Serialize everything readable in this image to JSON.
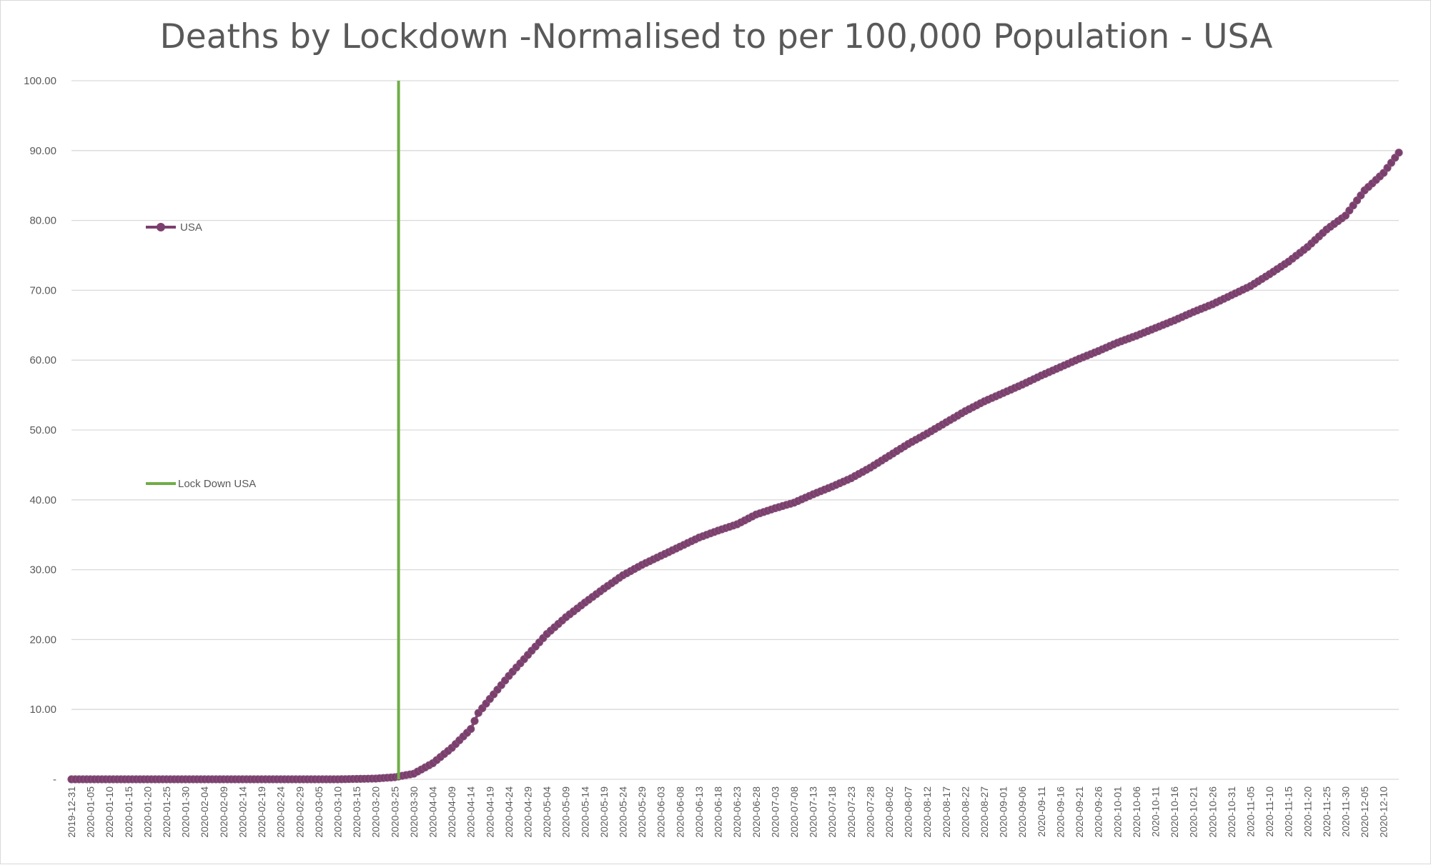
{
  "chart_data": {
    "type": "line",
    "title": "Deaths by Lockdown -Normalised to per 100,000 Population - USA",
    "xlabel": "",
    "ylabel": "",
    "ylim": [
      0,
      100
    ],
    "yticks": [
      "-",
      "10.00",
      "20.00",
      "30.00",
      "40.00",
      "50.00",
      "60.00",
      "70.00",
      "80.00",
      "90.00",
      "100.00"
    ],
    "grid": true,
    "x_start": "2019-12-31",
    "x_end": "2020-12-14",
    "x_tick_labels": [
      "2019-12-31",
      "2020-01-05",
      "2020-01-10",
      "2020-01-15",
      "2020-01-20",
      "2020-01-25",
      "2020-01-30",
      "2020-02-04",
      "2020-02-09",
      "2020-02-14",
      "2020-02-19",
      "2020-02-24",
      "2020-02-29",
      "2020-03-05",
      "2020-03-10",
      "2020-03-15",
      "2020-03-20",
      "2020-03-25",
      "2020-03-30",
      "2020-04-04",
      "2020-04-09",
      "2020-04-14",
      "2020-04-19",
      "2020-04-24",
      "2020-04-29",
      "2020-05-04",
      "2020-05-09",
      "2020-05-14",
      "2020-05-19",
      "2020-05-24",
      "2020-05-29",
      "2020-06-03",
      "2020-06-08",
      "2020-06-13",
      "2020-06-18",
      "2020-06-23",
      "2020-06-28",
      "2020-07-03",
      "2020-07-08",
      "2020-07-13",
      "2020-07-18",
      "2020-07-23",
      "2020-07-28",
      "2020-08-02",
      "2020-08-07",
      "2020-08-12",
      "2020-08-17",
      "2020-08-22",
      "2020-08-27",
      "2020-09-01",
      "2020-09-06",
      "2020-09-11",
      "2020-09-16",
      "2020-09-21",
      "2020-09-26",
      "2020-10-01",
      "2020-10-06",
      "2020-10-11",
      "2020-10-16",
      "2020-10-21",
      "2020-10-26",
      "2020-10-31",
      "2020-11-05",
      "2020-11-10",
      "2020-11-15",
      "2020-11-20",
      "2020-11-25",
      "2020-11-30",
      "2020-12-05",
      "2020-12-10"
    ],
    "series": [
      {
        "name": "USA",
        "color": "#7b3f6e",
        "marker": "circle",
        "anchor_points": [
          [
            "2019-12-31",
            0.0
          ],
          [
            "2020-03-10",
            0.0
          ],
          [
            "2020-03-15",
            0.05
          ],
          [
            "2020-03-20",
            0.1
          ],
          [
            "2020-03-25",
            0.3
          ],
          [
            "2020-03-30",
            0.8
          ],
          [
            "2020-04-04",
            2.3
          ],
          [
            "2020-04-09",
            4.5
          ],
          [
            "2020-04-14",
            7.2
          ],
          [
            "2020-04-16",
            9.5
          ],
          [
            "2020-04-19",
            11.5
          ],
          [
            "2020-04-24",
            14.8
          ],
          [
            "2020-04-29",
            17.8
          ],
          [
            "2020-05-04",
            20.8
          ],
          [
            "2020-05-09",
            23.2
          ],
          [
            "2020-05-14",
            25.3
          ],
          [
            "2020-05-19",
            27.3
          ],
          [
            "2020-05-24",
            29.2
          ],
          [
            "2020-05-29",
            30.7
          ],
          [
            "2020-06-03",
            32.0
          ],
          [
            "2020-06-08",
            33.3
          ],
          [
            "2020-06-13",
            34.6
          ],
          [
            "2020-06-18",
            35.6
          ],
          [
            "2020-06-23",
            36.5
          ],
          [
            "2020-06-28",
            37.9
          ],
          [
            "2020-07-03",
            38.8
          ],
          [
            "2020-07-08",
            39.6
          ],
          [
            "2020-07-13",
            40.8
          ],
          [
            "2020-07-18",
            41.9
          ],
          [
            "2020-07-23",
            43.1
          ],
          [
            "2020-07-28",
            44.6
          ],
          [
            "2020-08-02",
            46.3
          ],
          [
            "2020-08-07",
            48.0
          ],
          [
            "2020-08-12",
            49.5
          ],
          [
            "2020-08-17",
            51.1
          ],
          [
            "2020-08-22",
            52.7
          ],
          [
            "2020-08-27",
            54.1
          ],
          [
            "2020-09-01",
            55.3
          ],
          [
            "2020-09-06",
            56.5
          ],
          [
            "2020-09-11",
            57.8
          ],
          [
            "2020-09-16",
            59.0
          ],
          [
            "2020-09-21",
            60.2
          ],
          [
            "2020-09-26",
            61.3
          ],
          [
            "2020-10-01",
            62.5
          ],
          [
            "2020-10-06",
            63.5
          ],
          [
            "2020-10-11",
            64.6
          ],
          [
            "2020-10-16",
            65.7
          ],
          [
            "2020-10-21",
            66.9
          ],
          [
            "2020-10-26",
            68.0
          ],
          [
            "2020-10-31",
            69.3
          ],
          [
            "2020-11-05",
            70.6
          ],
          [
            "2020-11-10",
            72.3
          ],
          [
            "2020-11-15",
            74.1
          ],
          [
            "2020-11-20",
            76.2
          ],
          [
            "2020-11-25",
            78.7
          ],
          [
            "2020-11-30",
            80.7
          ],
          [
            "2020-12-05",
            84.3
          ],
          [
            "2020-12-10",
            86.8
          ],
          [
            "2020-12-14",
            89.7
          ]
        ]
      },
      {
        "name": "Lock Down USA",
        "color": "#70ad47",
        "type": "vertical-line",
        "x": "2020-03-26",
        "y_range": [
          0,
          100
        ]
      }
    ],
    "legend": {
      "placement": "inside-left",
      "entries": [
        "USA",
        "Lock Down USA"
      ]
    }
  }
}
